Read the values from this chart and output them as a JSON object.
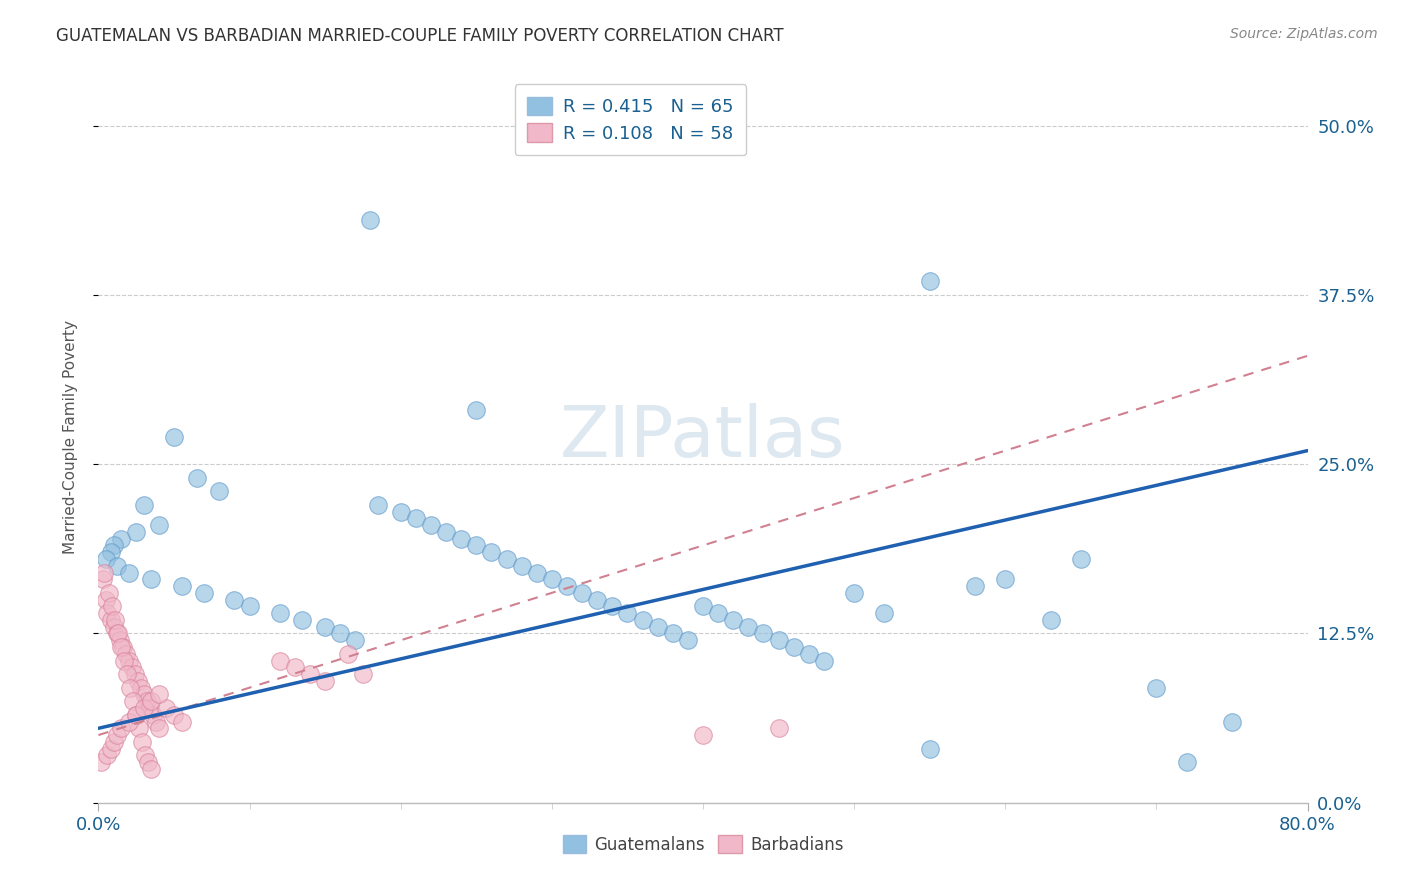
{
  "title": "GUATEMALAN VS BARBADIAN MARRIED-COUPLE FAMILY POVERTY CORRELATION CHART",
  "source": "Source: ZipAtlas.com",
  "ylabel": "Married-Couple Family Poverty",
  "ytick_vals": [
    0.0,
    12.5,
    25.0,
    37.5,
    50.0
  ],
  "xlim": [
    0.0,
    80.0
  ],
  "ylim": [
    0.0,
    54.0
  ],
  "r_guatemalan": 0.415,
  "n_guatemalan": 65,
  "r_barbadian": 0.108,
  "n_barbadian": 58,
  "blue_color": "#92c0e0",
  "pink_color": "#f0b8c8",
  "line_blue": "#2060b0",
  "line_pink": "#d08090",
  "watermark_color": "#dde8f0",
  "title_color": "#333333",
  "axis_color": "#1a6090",
  "source_color": "#888888",
  "blue_line_start_y": 5.5,
  "blue_line_end_y": 26.0,
  "pink_line_start_y": 5.0,
  "pink_line_end_y": 33.0,
  "guatemalan_x": [
    18.0,
    55.0,
    25.0,
    5.0,
    6.5,
    8.0,
    3.0,
    4.0,
    2.5,
    1.5,
    1.0,
    0.8,
    0.5,
    1.2,
    2.0,
    3.5,
    5.5,
    7.0,
    9.0,
    10.0,
    12.0,
    13.5,
    15.0,
    16.0,
    17.0,
    18.5,
    20.0,
    21.0,
    22.0,
    23.0,
    24.0,
    25.0,
    26.0,
    27.0,
    28.0,
    29.0,
    30.0,
    31.0,
    32.0,
    33.0,
    34.0,
    35.0,
    36.0,
    37.0,
    38.0,
    39.0,
    40.0,
    41.0,
    42.0,
    43.0,
    44.0,
    45.0,
    46.0,
    47.0,
    48.0,
    50.0,
    52.0,
    55.0,
    58.0,
    60.0,
    63.0,
    65.0,
    70.0,
    72.0,
    75.0
  ],
  "guatemalan_y": [
    43.0,
    38.5,
    29.0,
    27.0,
    24.0,
    23.0,
    22.0,
    20.5,
    20.0,
    19.5,
    19.0,
    18.5,
    18.0,
    17.5,
    17.0,
    16.5,
    16.0,
    15.5,
    15.0,
    14.5,
    14.0,
    13.5,
    13.0,
    12.5,
    12.0,
    22.0,
    21.5,
    21.0,
    20.5,
    20.0,
    19.5,
    19.0,
    18.5,
    18.0,
    17.5,
    17.0,
    16.5,
    16.0,
    15.5,
    15.0,
    14.5,
    14.0,
    13.5,
    13.0,
    12.5,
    12.0,
    14.5,
    14.0,
    13.5,
    13.0,
    12.5,
    12.0,
    11.5,
    11.0,
    10.5,
    15.5,
    14.0,
    4.0,
    16.0,
    16.5,
    13.5,
    18.0,
    8.5,
    3.0,
    6.0
  ],
  "barbadian_x": [
    0.3,
    0.5,
    0.6,
    0.8,
    1.0,
    1.2,
    1.4,
    1.6,
    1.8,
    2.0,
    2.2,
    2.4,
    2.6,
    2.8,
    3.0,
    3.2,
    3.4,
    3.6,
    3.8,
    4.0,
    4.5,
    5.0,
    5.5,
    0.4,
    0.7,
    0.9,
    1.1,
    1.3,
    1.5,
    1.7,
    1.9,
    2.1,
    2.3,
    2.5,
    2.7,
    2.9,
    3.1,
    3.3,
    3.5,
    0.2,
    0.6,
    0.8,
    1.0,
    1.2,
    1.5,
    2.0,
    2.5,
    3.0,
    3.5,
    4.0,
    12.0,
    13.0,
    15.0,
    14.0,
    16.5,
    17.5,
    40.0,
    45.0
  ],
  "barbadian_y": [
    16.5,
    15.0,
    14.0,
    13.5,
    13.0,
    12.5,
    12.0,
    11.5,
    11.0,
    10.5,
    10.0,
    9.5,
    9.0,
    8.5,
    8.0,
    7.5,
    7.0,
    6.5,
    6.0,
    5.5,
    7.0,
    6.5,
    6.0,
    17.0,
    15.5,
    14.5,
    13.5,
    12.5,
    11.5,
    10.5,
    9.5,
    8.5,
    7.5,
    6.5,
    5.5,
    4.5,
    3.5,
    3.0,
    2.5,
    3.0,
    3.5,
    4.0,
    4.5,
    5.0,
    5.5,
    6.0,
    6.5,
    7.0,
    7.5,
    8.0,
    10.5,
    10.0,
    9.0,
    9.5,
    11.0,
    9.5,
    5.0,
    5.5
  ]
}
